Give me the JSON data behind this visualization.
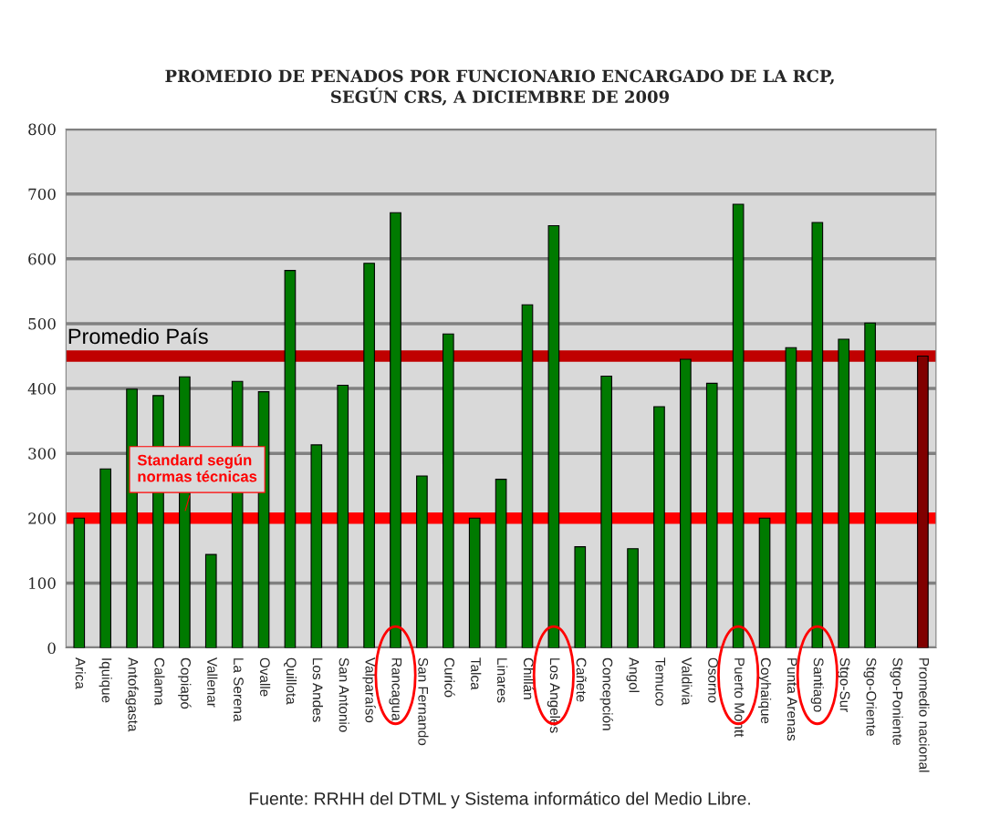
{
  "chart_data": {
    "type": "bar",
    "title": "PROMEDIO DE PENADOS POR FUNCIONARIO ENCARGADO DE LA RCP,\nSEGÚN CRS, A DICIEMBRE DE 2009",
    "categories": [
      "Arica",
      "Iquique",
      "Antofagasta",
      "Calama",
      "Copiapó",
      "Vallenar",
      "La Serena",
      "Ovalle",
      "Quillota",
      "Los Andes",
      "San Antonio",
      "Valparaíso",
      "Rancagua",
      "San Fernando",
      "Curicó",
      "Talca",
      "Linares",
      "Chillán",
      "Los Angeles",
      "Cañete",
      "Concepción",
      "Angol",
      "Temuco",
      "Valdivia",
      "Osorno",
      "Puerto Montt",
      "Coyhaique",
      "Punta Arenas",
      "Santiago",
      "Stgo-Sur",
      "Stgo-Oriente",
      "Stgo-Poniente",
      "Promedio nacional"
    ],
    "values": [
      200,
      276,
      399,
      389,
      418,
      144,
      411,
      395,
      582,
      313,
      405,
      593,
      671,
      265,
      484,
      200,
      260,
      529,
      651,
      156,
      419,
      153,
      372,
      445,
      408,
      684,
      200,
      463,
      656,
      476,
      501,
      null,
      450
    ],
    "colors": [
      "#007a00",
      "#007a00",
      "#007a00",
      "#007a00",
      "#007a00",
      "#007a00",
      "#007a00",
      "#007a00",
      "#007a00",
      "#007a00",
      "#007a00",
      "#007a00",
      "#007a00",
      "#007a00",
      "#007a00",
      "#007a00",
      "#007a00",
      "#007a00",
      "#007a00",
      "#007a00",
      "#007a00",
      "#007a00",
      "#007a00",
      "#007a00",
      "#007a00",
      "#007a00",
      "#007a00",
      "#007a00",
      "#007a00",
      "#007a00",
      "#007a00",
      "#007a00",
      "#800000"
    ],
    "ylim": [
      0,
      800
    ],
    "yticks": [
      0,
      100,
      200,
      300,
      400,
      500,
      600,
      700,
      800
    ],
    "grid": "y",
    "ref_lines": [
      {
        "axis": "y",
        "value": 450,
        "label": "Promedio País",
        "color": "#c00000"
      },
      {
        "axis": "y",
        "value": 200,
        "label": "Standard según\nnormas técnicas",
        "color": "#ff0000"
      }
    ],
    "annotations": [
      "Fuente: RRHH del DTML y Sistema informático del Medio Libre."
    ]
  }
}
